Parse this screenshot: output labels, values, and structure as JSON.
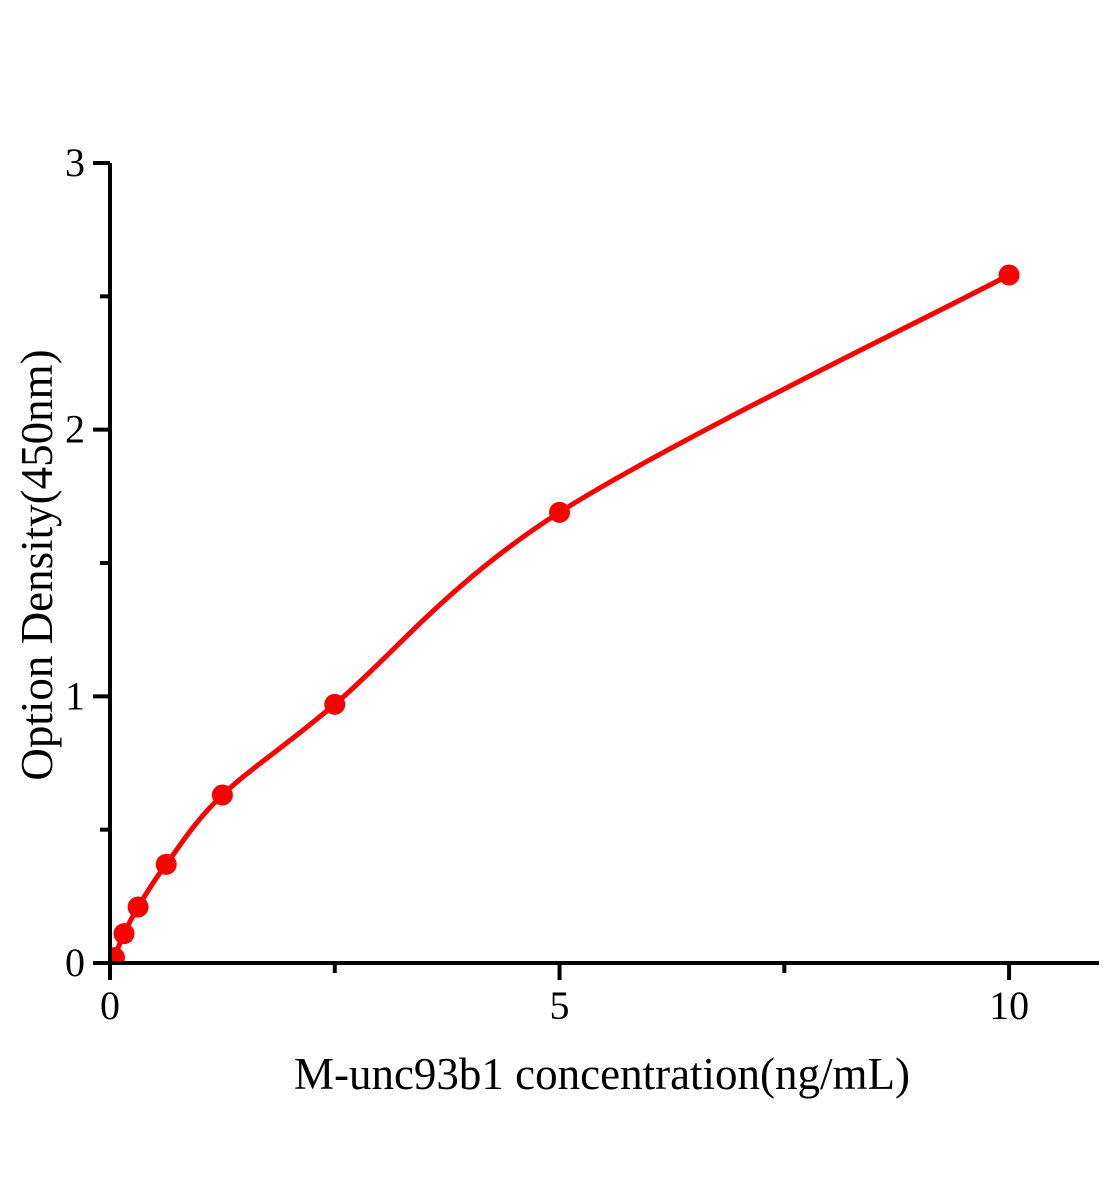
{
  "chart_data": {
    "type": "scatter",
    "title": "",
    "xlabel": "M-unc93b1 concentration(ng/mL)",
    "ylabel": "Option Density(450nm)",
    "points": [
      {
        "x": 0.05,
        "y": 0.02
      },
      {
        "x": 0.156,
        "y": 0.11
      },
      {
        "x": 0.3125,
        "y": 0.21
      },
      {
        "x": 0.625,
        "y": 0.37
      },
      {
        "x": 1.25,
        "y": 0.63
      },
      {
        "x": 2.5,
        "y": 0.97
      },
      {
        "x": 5,
        "y": 1.69
      },
      {
        "x": 10,
        "y": 2.58
      }
    ],
    "curve": "smooth saturating fit through points",
    "xlim": [
      0,
      11
    ],
    "ylim": [
      0,
      3
    ],
    "x_major_ticks": [
      {
        "value": 0,
        "label": "0"
      },
      {
        "value": 5,
        "label": "5"
      },
      {
        "value": 10,
        "label": "10"
      }
    ],
    "x_minor_ticks": [
      2.5,
      7.5
    ],
    "y_major_ticks": [
      {
        "value": 0,
        "label": "0"
      },
      {
        "value": 1,
        "label": "1"
      },
      {
        "value": 2,
        "label": "2"
      },
      {
        "value": 3,
        "label": "3"
      }
    ],
    "y_minor_ticks": [
      0.5,
      1.5,
      2.5
    ],
    "grid": false,
    "legend": false,
    "marker": "filled-circle",
    "colors": {
      "series": "#fa0000",
      "axis": "#000000",
      "background": "#ffffff"
    }
  }
}
